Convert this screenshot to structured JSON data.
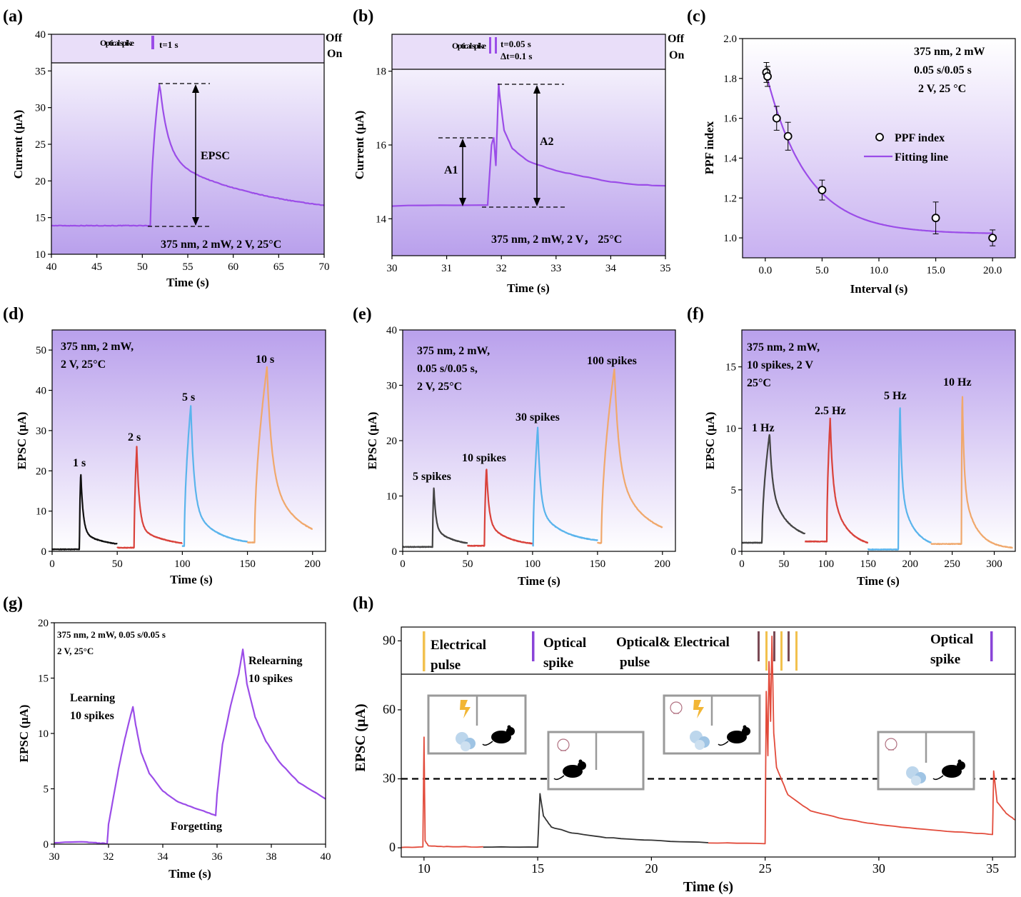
{
  "chart_data": [
    {
      "id": "a",
      "panel_label": "(a)",
      "type": "line",
      "xlabel": "Time (s)",
      "ylabel": "Current (μA)",
      "xlim": [
        40,
        70
      ],
      "ylim": [
        10,
        40
      ],
      "xticks": [
        40,
        45,
        50,
        55,
        60,
        65,
        70
      ],
      "yticks": [
        10,
        15,
        20,
        25,
        30,
        35,
        40
      ],
      "stim_bar": {
        "split_y": 36,
        "upper_label": "Off",
        "lower_label": "On",
        "spike_label": "Optical spike",
        "spike_note": "t=1 s"
      },
      "annotations": [
        "EPSC",
        "375 nm, 2 mW, 2 V, 25°C"
      ],
      "series": [
        {
          "color": "#9b4de8",
          "model": {
            "baseline": 13.9,
            "onset": 50.9,
            "peak_time": 51.9,
            "peak": 33.4,
            "floor": 14.8,
            "decay": [
              {
                "a": 0.55,
                "tau": 0.9
              },
              {
                "a": 0.45,
                "tau": 12
              }
            ]
          }
        }
      ]
    },
    {
      "id": "b",
      "panel_label": "(b)",
      "type": "line",
      "xlabel": "Time (s)",
      "ylabel": "Current (μA)",
      "xlim": [
        30,
        35
      ],
      "ylim": [
        13,
        19
      ],
      "xticks": [
        30,
        31,
        32,
        33,
        34,
        35
      ],
      "yticks": [
        14,
        16,
        18
      ],
      "stim_bar": {
        "split_y": 18.05,
        "upper_label": "Off",
        "lower_label": "On",
        "spike_label": "Optical spike",
        "spike_note": "t=0.05 s",
        "spike_note2": "Δt=0.1 s"
      },
      "annotations": [
        "A1",
        "A2",
        "375 nm, 2 mW, 2 V， 25°C"
      ],
      "series": [
        {
          "color": "#9b4de8",
          "points": [
            [
              30,
              14.35
            ],
            [
              31.75,
              14.38
            ],
            [
              31.82,
              16.0
            ],
            [
              31.86,
              16.2
            ],
            [
              31.9,
              15.45
            ],
            [
              31.95,
              17.65
            ],
            [
              31.98,
              17.2
            ],
            [
              32.05,
              16.4
            ],
            [
              32.2,
              15.9
            ],
            [
              32.5,
              15.55
            ],
            [
              33,
              15.3
            ],
            [
              33.5,
              15.15
            ],
            [
              34,
              15.0
            ],
            [
              34.5,
              14.92
            ],
            [
              35,
              14.9
            ]
          ]
        }
      ]
    },
    {
      "id": "c",
      "panel_label": "(c)",
      "type": "scatter",
      "xlabel": "Interval (s)",
      "ylabel": "PPF index",
      "xlim": [
        -2,
        22
      ],
      "ylim": [
        0.9,
        2.0
      ],
      "xticks": [
        0,
        5,
        10,
        15,
        20
      ],
      "yticks": [
        1.0,
        1.2,
        1.4,
        1.6,
        1.8,
        2.0
      ],
      "annotations": [
        "375 nm, 2 mW",
        "0.05 s/0.05 s",
        "2 V, 25 °C"
      ],
      "legend": {
        "placement": "middle-right",
        "entries": [
          "PPF index",
          "Fitting line"
        ]
      },
      "x": [
        0.1,
        0.2,
        1,
        2,
        5,
        15,
        20
      ],
      "y": [
        1.83,
        1.81,
        1.6,
        1.51,
        1.24,
        1.1,
        1.0
      ],
      "err": [
        0.05,
        0.05,
        0.06,
        0.07,
        0.05,
        0.08,
        0.04
      ],
      "fit": {
        "color": "#9b4de8",
        "y0": 1.02,
        "a": 0.82,
        "tau": 3.6
      }
    },
    {
      "id": "d",
      "panel_label": "(d)",
      "type": "line",
      "xlabel": "Time (s)",
      "ylabel": "EPSC (μA)",
      "xlim": [
        0,
        210
      ],
      "ylim": [
        0,
        55
      ],
      "xticks": [
        0,
        50,
        100,
        150,
        200
      ],
      "yticks": [
        0,
        10,
        20,
        30,
        40,
        50
      ],
      "annotations": [
        "375 nm, 2 mW,",
        "2 V, 25°C"
      ],
      "series": [
        {
          "name": "1 s",
          "color": "#111111",
          "model": {
            "start": 0,
            "end": 50,
            "baseline": 0.5,
            "onset": 21,
            "peak_time": 22,
            "peak": 19.7,
            "floor": 0.9,
            "decay": [
              {
                "a": 0.8,
                "tau": 1.8
              },
              {
                "a": 0.2,
                "tau": 20
              }
            ]
          }
        },
        {
          "name": "2 s",
          "color": "#d9423b",
          "model": {
            "start": 50,
            "end": 100,
            "baseline": 0.9,
            "onset": 63,
            "peak_time": 65,
            "peak": 26,
            "floor": 1.0,
            "decay": [
              {
                "a": 0.8,
                "tau": 2.0
              },
              {
                "a": 0.2,
                "tau": 22
              }
            ]
          }
        },
        {
          "name": "5 s",
          "color": "#5ab4ec",
          "model": {
            "start": 100,
            "end": 150,
            "baseline": 1.3,
            "onset": 101.5,
            "peak_time": 106.5,
            "peak": 36.3,
            "floor": 1.5,
            "decay": [
              {
                "a": 0.72,
                "tau": 2.5
              },
              {
                "a": 0.28,
                "tau": 18
              }
            ]
          }
        },
        {
          "name": "10 s",
          "color": "#f0a86c",
          "model": {
            "start": 150,
            "end": 200,
            "baseline": 2.2,
            "onset": 155.5,
            "peak_time": 165,
            "peak": 45.8,
            "floor": 2.5,
            "decay": [
              {
                "a": 0.6,
                "tau": 3.5
              },
              {
                "a": 0.4,
                "tau": 20
              }
            ]
          }
        }
      ]
    },
    {
      "id": "e",
      "panel_label": "(e)",
      "type": "line",
      "xlabel": "Time (s)",
      "ylabel": "EPSC (μA)",
      "xlim": [
        0,
        210
      ],
      "ylim": [
        0,
        40
      ],
      "xticks": [
        0,
        50,
        100,
        150,
        200
      ],
      "yticks": [
        0,
        10,
        20,
        30,
        40
      ],
      "annotations": [
        "375 nm, 2 mW,",
        "0.05 s/0.05 s,",
        "2 V, 25°C"
      ],
      "series": [
        {
          "name": "5 spikes",
          "color": "#444444",
          "model": {
            "start": 0,
            "end": 50,
            "baseline": 0.8,
            "onset": 23,
            "peak_time": 24,
            "peak": 11.7,
            "floor": 0.9,
            "decay": [
              {
                "a": 0.7,
                "tau": 1.5
              },
              {
                "a": 0.3,
                "tau": 15
              }
            ]
          }
        },
        {
          "name": "10 spikes",
          "color": "#d9423b",
          "model": {
            "start": 50,
            "end": 100,
            "baseline": 1.0,
            "onset": 63,
            "peak_time": 64.5,
            "peak": 15.3,
            "floor": 1.0,
            "decay": [
              {
                "a": 0.7,
                "tau": 1.8
              },
              {
                "a": 0.3,
                "tau": 15
              }
            ]
          }
        },
        {
          "name": "30 spikes",
          "color": "#5ab4ec",
          "model": {
            "start": 100,
            "end": 150,
            "baseline": 1.0,
            "onset": 100.5,
            "peak_time": 104,
            "peak": 22.5,
            "floor": 1.5,
            "decay": [
              {
                "a": 0.7,
                "tau": 2.0
              },
              {
                "a": 0.3,
                "tau": 18
              }
            ]
          }
        },
        {
          "name": "100 spikes",
          "color": "#f0a86c",
          "model": {
            "start": 150,
            "end": 200,
            "baseline": 1.5,
            "onset": 153,
            "peak_time": 163,
            "peak": 33,
            "floor": 2.0,
            "decay": [
              {
                "a": 0.6,
                "tau": 3.5
              },
              {
                "a": 0.4,
                "tau": 22
              }
            ]
          }
        }
      ]
    },
    {
      "id": "f",
      "panel_label": "(f)",
      "type": "line",
      "xlabel": "Time (s)",
      "ylabel": "EPSC (μA)",
      "xlim": [
        0,
        325
      ],
      "ylim": [
        0,
        18
      ],
      "xticks": [
        0,
        50,
        100,
        150,
        200,
        250,
        300
      ],
      "yticks": [
        0,
        5,
        10,
        15
      ],
      "annotations": [
        "375 nm, 2 mW,",
        "10 spikes, 2 V",
        "25°C"
      ],
      "series": [
        {
          "name": "1 Hz",
          "color": "#444444",
          "model": {
            "start": 0,
            "end": 75,
            "baseline": 0.7,
            "onset": 24,
            "peak_time": 33,
            "peak": 9.6,
            "floor": 0.9,
            "decay": [
              {
                "a": 0.5,
                "tau": 3
              },
              {
                "a": 0.5,
                "tau": 20
              }
            ]
          }
        },
        {
          "name": "2.5 Hz",
          "color": "#d9423b",
          "model": {
            "start": 75,
            "end": 150,
            "baseline": 0.8,
            "onset": 101,
            "peak_time": 105,
            "peak": 10.8,
            "floor": 0.3,
            "decay": [
              {
                "a": 0.55,
                "tau": 3
              },
              {
                "a": 0.45,
                "tau": 18
              }
            ]
          }
        },
        {
          "name": "5 Hz",
          "color": "#5ab4ec",
          "model": {
            "start": 150,
            "end": 225,
            "baseline": 0.15,
            "onset": 186,
            "peak_time": 188,
            "peak": 12.1,
            "floor": 0.3,
            "decay": [
              {
                "a": 0.6,
                "tau": 2
              },
              {
                "a": 0.4,
                "tau": 15
              }
            ]
          }
        },
        {
          "name": "10 Hz",
          "color": "#f0a86c",
          "model": {
            "start": 225,
            "end": 322,
            "baseline": 0.6,
            "onset": 261,
            "peak_time": 262,
            "peak": 13.3,
            "floor": 0.2,
            "decay": [
              {
                "a": 0.6,
                "tau": 2
              },
              {
                "a": 0.4,
                "tau": 15
              }
            ]
          }
        }
      ]
    },
    {
      "id": "g",
      "panel_label": "(g)",
      "type": "line",
      "xlabel": "Time (s)",
      "ylabel": "EPSC (μA)",
      "xlim": [
        30,
        40
      ],
      "ylim": [
        0,
        20
      ],
      "xticks": [
        30,
        32,
        34,
        36,
        38,
        40
      ],
      "yticks": [
        0,
        5,
        10,
        15,
        20
      ],
      "annotations": [
        "375 nm, 2 mW, 0.05 s/0.05 s",
        "2 V, 25°C"
      ],
      "labels": [
        "Learning",
        "10 spikes",
        "Forgetting",
        "Relearning",
        "10 spikes"
      ],
      "series": [
        {
          "color": "#9b4de8",
          "points": [
            [
              30,
              0.15
            ],
            [
              31.2,
              0.2
            ],
            [
              31.6,
              0.1
            ],
            [
              31.95,
              0.05
            ],
            [
              32.0,
              1.8
            ],
            [
              32.2,
              4.5
            ],
            [
              32.4,
              7.2
            ],
            [
              32.6,
              9.5
            ],
            [
              32.8,
              11.5
            ],
            [
              32.9,
              12.4
            ],
            [
              33.0,
              10.8
            ],
            [
              33.2,
              8.3
            ],
            [
              33.5,
              6.4
            ],
            [
              34.0,
              4.8
            ],
            [
              34.5,
              3.9
            ],
            [
              35.0,
              3.4
            ],
            [
              35.5,
              3.0
            ],
            [
              35.95,
              2.6
            ],
            [
              36.0,
              4.5
            ],
            [
              36.2,
              9.0
            ],
            [
              36.5,
              12.5
            ],
            [
              36.8,
              15.4
            ],
            [
              36.95,
              17.6
            ],
            [
              37.1,
              14.5
            ],
            [
              37.4,
              11.5
            ],
            [
              37.8,
              9.3
            ],
            [
              38.3,
              7.4
            ],
            [
              39.0,
              5.6
            ],
            [
              40.0,
              4.1
            ]
          ]
        }
      ]
    },
    {
      "id": "h",
      "panel_label": "(h)",
      "type": "line",
      "xlabel": "Time (s)",
      "ylabel": "EPSC (μA)",
      "xlim": [
        9,
        36
      ],
      "ylim": [
        -4,
        96
      ],
      "xticks": [
        10,
        15,
        20,
        25,
        30,
        35
      ],
      "yticks": [
        0,
        30,
        60,
        90
      ],
      "threshold": 30,
      "stim_labels": [
        "Electrical",
        "pulse",
        "Optical",
        "spike",
        "Optical& Electrical",
        "pulse",
        "Optical",
        "spike"
      ],
      "stim_colors": {
        "electrical": "#f2c14e",
        "optical": "#8a44d8",
        "combined": "#7a4a55"
      },
      "series": [
        {
          "color": "#e24b3b",
          "points": [
            [
              9,
              0.3
            ],
            [
              9.95,
              0.3
            ],
            [
              10.0,
              48
            ],
            [
              10.05,
              3
            ],
            [
              10.2,
              0.8
            ],
            [
              11,
              0.5
            ],
            [
              12.6,
              0.4
            ]
          ]
        },
        {
          "color": "#333333",
          "points": [
            [
              12.6,
              0.4
            ],
            [
              15.0,
              0.4
            ],
            [
              15.1,
              23.5
            ],
            [
              15.25,
              14
            ],
            [
              15.6,
              9
            ],
            [
              16.5,
              6.5
            ],
            [
              18,
              4.5
            ],
            [
              20,
              3.2
            ],
            [
              22.5,
              2.2
            ]
          ]
        },
        {
          "color": "#e24b3b",
          "points": [
            [
              22.5,
              2.2
            ],
            [
              25.0,
              1.8
            ],
            [
              25.05,
              68
            ],
            [
              25.12,
              40
            ],
            [
              25.17,
              81
            ],
            [
              25.24,
              55
            ],
            [
              25.3,
              92
            ],
            [
              25.38,
              50
            ],
            [
              25.5,
              35
            ],
            [
              26.0,
              23
            ],
            [
              27,
              16
            ],
            [
              28.5,
              12.5
            ],
            [
              30,
              10
            ],
            [
              32,
              8
            ],
            [
              34,
              6.5
            ],
            [
              35.0,
              5.8
            ],
            [
              35.05,
              33.5
            ],
            [
              35.2,
              20
            ],
            [
              35.6,
              15
            ],
            [
              36,
              12
            ]
          ]
        }
      ]
    }
  ]
}
